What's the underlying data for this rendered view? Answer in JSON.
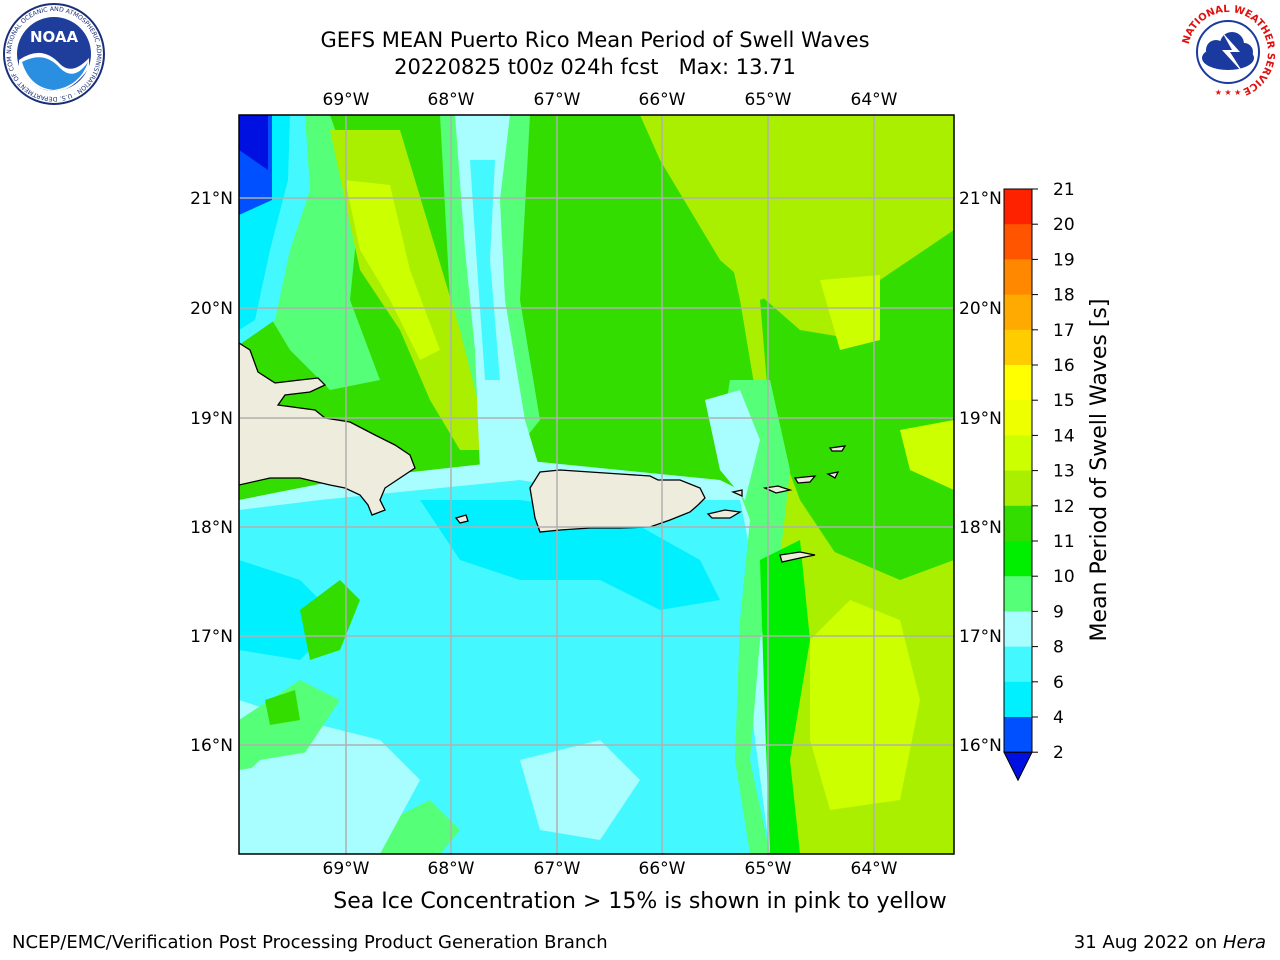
{
  "title": {
    "line1": "GEFS MEAN Puerto Rico Mean Period of Swell Waves",
    "line2": "20220825 t00z 024h fcst   Max: 13.71"
  },
  "map": {
    "lon_labels": [
      "69°W",
      "68°W",
      "67°W",
      "66°W",
      "65°W",
      "64°W"
    ],
    "lat_labels": [
      "21°N",
      "20°N",
      "19°N",
      "18°N",
      "17°N",
      "16°N"
    ]
  },
  "colorbar": {
    "label": "Mean Period of Swell Waves [s]",
    "ticks": [
      "21",
      "20",
      "19",
      "18",
      "17",
      "16",
      "15",
      "14",
      "13",
      "12",
      "11",
      "10",
      "9",
      "8",
      "6",
      "4",
      "2"
    ],
    "colors": {
      "2": "#0050ff",
      "4": "#00f0ff",
      "6": "#44f8ff",
      "8": "#a8fdff",
      "9": "#55ff77",
      "10": "#00ee00",
      "11": "#33dd00",
      "12": "#aaee00",
      "13": "#ccff00",
      "14": "#eeff00",
      "15": "#ffff00",
      "16": "#ffcc00",
      "17": "#ffaa00",
      "18": "#ff8800",
      "19": "#ff5500",
      "20": "#ff2200",
      "under": "#0010e0"
    },
    "land_color": "#eeecdc"
  },
  "caption": "Sea Ice Concentration > 15% is shown in pink to yellow",
  "footer": {
    "left": "NCEP/EMC/Verification Post Processing Product Generation Branch",
    "right_date": "31 Aug 2022 on ",
    "right_machine": "Hera"
  },
  "logos": {
    "noaa_text": "NOAA",
    "noaa_ring": "NATIONAL OCEANIC AND ATMOSPHERIC ADMINISTRATION · U.S. DEPARTMENT OF COMMERCE",
    "nws_ring": "NATIONAL WEATHER SERVICE"
  }
}
